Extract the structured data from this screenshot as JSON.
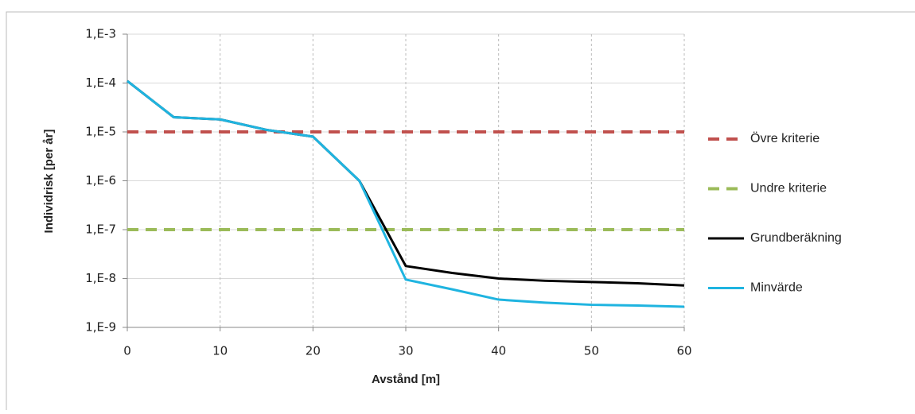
{
  "chart_data": {
    "type": "line",
    "xlabel": "Avstånd [m]",
    "ylabel": "Individrisk [per år]",
    "x": [
      0,
      5,
      10,
      15,
      20,
      25,
      30,
      35,
      40,
      45,
      50,
      55,
      60
    ],
    "xlim": [
      0,
      60
    ],
    "xticks": [
      0,
      10,
      20,
      30,
      40,
      50,
      60
    ],
    "ylim": [
      1e-09,
      0.001
    ],
    "ylog": true,
    "yticks": [
      {
        "value": 1e-09,
        "label": "1,E-9"
      },
      {
        "value": 1e-08,
        "label": "1,E-8"
      },
      {
        "value": 1e-07,
        "label": "1,E-7"
      },
      {
        "value": 1e-06,
        "label": "1,E-6"
      },
      {
        "value": 1e-05,
        "label": "1,E-5"
      },
      {
        "value": 0.0001,
        "label": "1,E-4"
      },
      {
        "value": 0.001,
        "label": "1,E-3"
      }
    ],
    "grid": true,
    "legend": "right",
    "series": [
      {
        "name": "Övre kriterie",
        "color": "#c0504d",
        "style": "dashed",
        "values": [
          1e-05,
          1e-05,
          1e-05,
          1e-05,
          1e-05,
          1e-05,
          1e-05,
          1e-05,
          1e-05,
          1e-05,
          1e-05,
          1e-05,
          1e-05
        ]
      },
      {
        "name": "Undre kriterie",
        "color": "#9bbb59",
        "style": "dashed",
        "values": [
          1e-07,
          1e-07,
          1e-07,
          1e-07,
          1e-07,
          1e-07,
          1e-07,
          1e-07,
          1e-07,
          1e-07,
          1e-07,
          1e-07,
          1e-07
        ]
      },
      {
        "name": "Grundberäkning",
        "color": "#000000",
        "style": "solid",
        "values": [
          0.00011,
          2e-05,
          1.8e-05,
          1.1e-05,
          8e-06,
          1e-06,
          1.8e-08,
          1.3e-08,
          1e-08,
          9e-09,
          8.5e-09,
          8e-09,
          7.2e-09
        ]
      },
      {
        "name": "Minvärde",
        "color": "#1fb4e0",
        "style": "solid",
        "values": [
          0.00011,
          2e-05,
          1.8e-05,
          1.1e-05,
          8e-06,
          1e-06,
          9.5e-09,
          6e-09,
          3.7e-09,
          3.2e-09,
          2.9e-09,
          2.8e-09,
          2.65e-09
        ]
      }
    ]
  }
}
